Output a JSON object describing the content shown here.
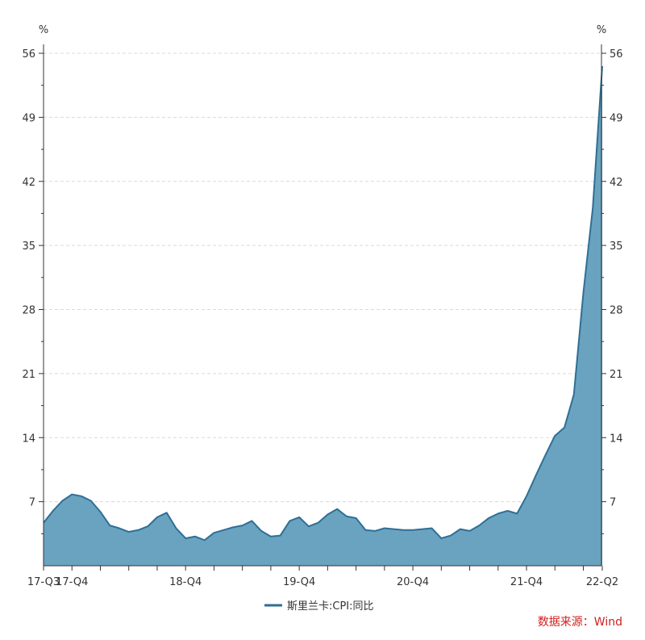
{
  "chart_data": {
    "type": "area",
    "y_unit_left": "%",
    "y_unit_right": "%",
    "ylim": [
      0,
      56
    ],
    "yticks": [
      7,
      14,
      21,
      28,
      35,
      42,
      49,
      56
    ],
    "grid": true,
    "legend_position": "bottom-center",
    "x_tick_labels": [
      "17-Q3",
      "17-Q4",
      "18-Q4",
      "19-Q4",
      "20-Q4",
      "21-Q4",
      "22-Q2"
    ],
    "x": [
      "2017-07",
      "2017-08",
      "2017-09",
      "2017-10",
      "2017-11",
      "2017-12",
      "2018-01",
      "2018-02",
      "2018-03",
      "2018-04",
      "2018-05",
      "2018-06",
      "2018-07",
      "2018-08",
      "2018-09",
      "2018-10",
      "2018-11",
      "2018-12",
      "2019-01",
      "2019-02",
      "2019-03",
      "2019-04",
      "2019-05",
      "2019-06",
      "2019-07",
      "2019-08",
      "2019-09",
      "2019-10",
      "2019-11",
      "2019-12",
      "2020-01",
      "2020-02",
      "2020-03",
      "2020-04",
      "2020-05",
      "2020-06",
      "2020-07",
      "2020-08",
      "2020-09",
      "2020-10",
      "2020-11",
      "2020-12",
      "2021-01",
      "2021-02",
      "2021-03",
      "2021-04",
      "2021-05",
      "2021-06",
      "2021-07",
      "2021-08",
      "2021-09",
      "2021-10",
      "2021-11",
      "2021-12",
      "2022-01",
      "2022-02",
      "2022-03",
      "2022-04",
      "2022-05",
      "2022-06"
    ],
    "series": [
      {
        "name": "斯里兰卡:CPI:同比",
        "color": "#2e6f95",
        "fill": "#6aa3c0",
        "values": [
          4.7,
          6.0,
          7.1,
          7.8,
          7.6,
          7.1,
          5.9,
          4.4,
          4.1,
          3.7,
          3.9,
          4.3,
          5.3,
          5.8,
          4.1,
          3.0,
          3.2,
          2.8,
          3.6,
          3.9,
          4.2,
          4.4,
          4.9,
          3.8,
          3.2,
          3.3,
          4.9,
          5.3,
          4.3,
          4.7,
          5.6,
          6.2,
          5.4,
          5.2,
          3.9,
          3.8,
          4.1,
          4.0,
          3.9,
          3.9,
          4.0,
          4.1,
          3.0,
          3.3,
          4.0,
          3.8,
          4.4,
          5.2,
          5.7,
          6.0,
          5.7,
          7.6,
          9.9,
          12.1,
          14.2,
          15.1,
          18.7,
          29.8,
          39.1,
          54.6
        ]
      }
    ]
  },
  "legend": {
    "label": "斯里兰卡:CPI:同比"
  },
  "source": "数据来源：Wind"
}
